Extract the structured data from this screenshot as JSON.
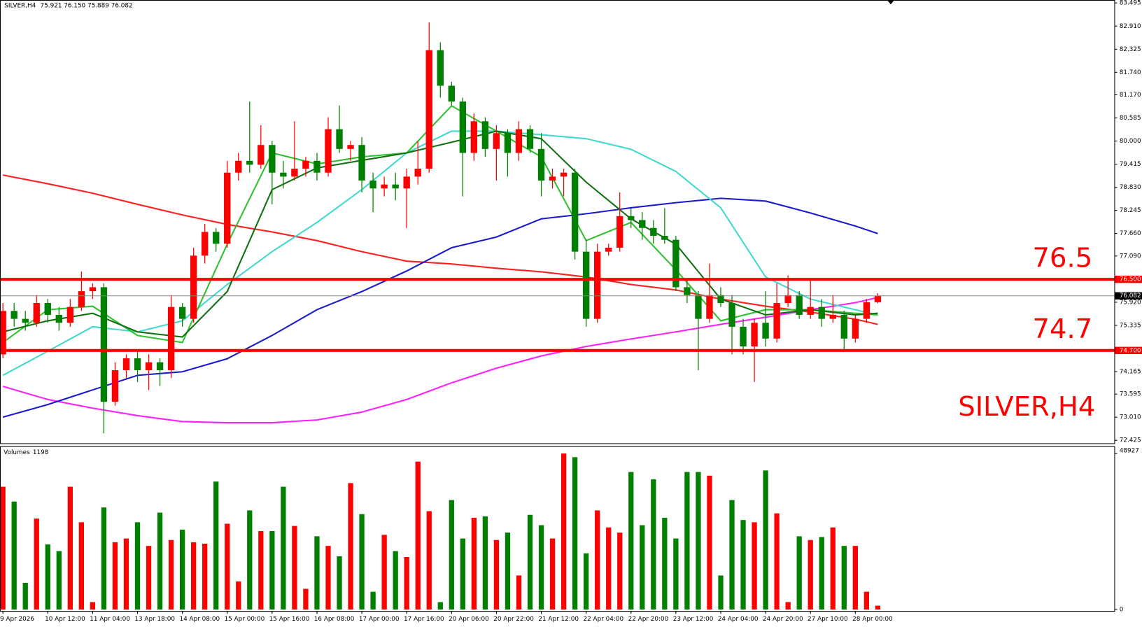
{
  "chart_data": {
    "type": "candlestick",
    "title": "SILVER,H4",
    "header_ohlc": "75.921 76.150 75.889 76.082",
    "up_color": "#ff0000",
    "down_color": "#008000",
    "ylim": [
      72.35,
      83.57
    ],
    "yticks": [
      {
        "value": 83.495,
        "label": "83.495"
      },
      {
        "value": 82.91,
        "label": "82.910"
      },
      {
        "value": 82.325,
        "label": "82.325"
      },
      {
        "value": 81.74,
        "label": "81.740"
      },
      {
        "value": 81.17,
        "label": "81.170"
      },
      {
        "value": 80.585,
        "label": "80.585"
      },
      {
        "value": 80.0,
        "label": "80.000"
      },
      {
        "value": 79.415,
        "label": "79.415"
      },
      {
        "value": 78.83,
        "label": "78.830"
      },
      {
        "value": 78.245,
        "label": "78.245"
      },
      {
        "value": 77.66,
        "label": "77.660"
      },
      {
        "value": 77.09,
        "label": "77.090"
      },
      {
        "value": 75.92,
        "label": "75.920"
      },
      {
        "value": 75.335,
        "label": "75.335"
      },
      {
        "value": 74.165,
        "label": "74.165"
      },
      {
        "value": 73.595,
        "label": "73.595"
      },
      {
        "value": 73.01,
        "label": "73.010"
      },
      {
        "value": 72.425,
        "label": "72.425"
      }
    ],
    "xticks": [
      {
        "value": 0,
        "label": "9 Apr 2026"
      },
      {
        "value": 4,
        "label": "10 Apr 12:00"
      },
      {
        "value": 8,
        "label": "11 Apr 04:00"
      },
      {
        "value": 12,
        "label": "13 Apr 18:00"
      },
      {
        "value": 16,
        "label": "14 Apr 08:00"
      },
      {
        "value": 20,
        "label": "15 Apr 00:00"
      },
      {
        "value": 24,
        "label": "15 Apr 16:00"
      },
      {
        "value": 28,
        "label": "16 Apr 08:00"
      },
      {
        "value": 32,
        "label": "17 Apr 00:00"
      },
      {
        "value": 36,
        "label": "17 Apr 16:00"
      },
      {
        "value": 40,
        "label": "20 Apr 06:00"
      },
      {
        "value": 44,
        "label": "20 Apr 22:00"
      },
      {
        "value": 48,
        "label": "21 Apr 12:00"
      },
      {
        "value": 52,
        "label": "22 Apr 04:00"
      },
      {
        "value": 56,
        "label": "22 Apr 20:00"
      },
      {
        "value": 60,
        "label": "23 Apr 12:00"
      },
      {
        "value": 64,
        "label": "24 Apr 04:00"
      },
      {
        "value": 68,
        "label": "24 Apr 20:00"
      },
      {
        "value": 72,
        "label": "27 Apr 10:00"
      },
      {
        "value": 76,
        "label": "28 Apr 00:00"
      }
    ],
    "candles": [
      [
        74.6,
        75.9,
        74.5,
        75.7
      ],
      [
        75.7,
        75.9,
        75.3,
        75.5
      ],
      [
        75.5,
        75.7,
        75.2,
        75.4
      ],
      [
        75.4,
        76.1,
        75.3,
        75.9
      ],
      [
        75.9,
        76.0,
        75.4,
        75.6
      ],
      [
        75.6,
        75.8,
        75.2,
        75.4
      ],
      [
        75.4,
        76.0,
        75.3,
        75.8
      ],
      [
        75.8,
        76.7,
        75.7,
        76.2
      ],
      [
        76.2,
        76.4,
        76.0,
        76.3
      ],
      [
        76.3,
        76.4,
        72.6,
        73.4
      ],
      [
        73.4,
        74.4,
        73.3,
        74.2
      ],
      [
        74.2,
        74.6,
        74.0,
        74.5
      ],
      [
        74.5,
        74.7,
        73.9,
        74.2
      ],
      [
        74.2,
        74.6,
        73.7,
        74.4
      ],
      [
        74.4,
        74.5,
        73.8,
        74.2
      ],
      [
        74.2,
        76.1,
        74.0,
        75.8
      ],
      [
        75.8,
        75.9,
        75.3,
        75.5
      ],
      [
        75.5,
        77.3,
        75.4,
        77.1
      ],
      [
        77.1,
        77.9,
        76.9,
        77.7
      ],
      [
        77.7,
        77.8,
        77.2,
        77.4
      ],
      [
        77.4,
        79.5,
        77.3,
        79.2
      ],
      [
        79.2,
        79.7,
        79.0,
        79.5
      ],
      [
        79.5,
        81.0,
        79.2,
        79.4
      ],
      [
        79.4,
        80.4,
        79.3,
        79.9
      ],
      [
        79.9,
        80.0,
        78.4,
        79.2
      ],
      [
        79.2,
        79.5,
        78.8,
        79.1
      ],
      [
        79.1,
        80.5,
        79.0,
        79.3
      ],
      [
        79.3,
        79.6,
        79.1,
        79.5
      ],
      [
        79.5,
        79.7,
        79.0,
        79.2
      ],
      [
        79.2,
        80.6,
        79.1,
        80.3
      ],
      [
        80.3,
        80.9,
        79.7,
        79.8
      ],
      [
        79.8,
        80.0,
        79.5,
        79.9
      ],
      [
        79.9,
        80.1,
        78.7,
        79.0
      ],
      [
        79.0,
        79.2,
        78.2,
        78.8
      ],
      [
        78.8,
        79.1,
        78.6,
        78.9
      ],
      [
        78.9,
        79.2,
        78.5,
        78.8
      ],
      [
        78.8,
        79.3,
        77.8,
        79.1
      ],
      [
        79.1,
        80.0,
        78.9,
        79.3
      ],
      [
        79.3,
        83.0,
        79.2,
        82.3
      ],
      [
        82.3,
        82.5,
        81.1,
        81.4
      ],
      [
        81.4,
        81.5,
        80.9,
        81.0
      ],
      [
        81.0,
        81.1,
        78.6,
        79.7
      ],
      [
        79.7,
        80.7,
        79.5,
        80.5
      ],
      [
        80.5,
        80.6,
        79.6,
        79.8
      ],
      [
        79.8,
        80.4,
        79.0,
        80.2
      ],
      [
        80.2,
        80.3,
        79.1,
        79.7
      ],
      [
        79.7,
        80.5,
        79.5,
        80.3
      ],
      [
        80.3,
        80.4,
        79.7,
        79.8
      ],
      [
        79.8,
        80.2,
        78.6,
        79.0
      ],
      [
        79.0,
        79.3,
        78.8,
        79.1
      ],
      [
        79.1,
        79.3,
        78.6,
        79.2
      ],
      [
        79.2,
        79.3,
        77.0,
        77.2
      ],
      [
        77.2,
        77.5,
        75.3,
        75.5
      ],
      [
        75.5,
        77.4,
        75.4,
        77.2
      ],
      [
        77.2,
        77.4,
        77.1,
        77.3
      ],
      [
        77.3,
        78.7,
        77.2,
        78.1
      ],
      [
        78.1,
        78.3,
        77.8,
        78.0
      ],
      [
        78.0,
        78.2,
        77.5,
        77.8
      ],
      [
        77.8,
        78.0,
        77.4,
        77.6
      ],
      [
        77.6,
        78.3,
        77.4,
        77.5
      ],
      [
        77.5,
        77.6,
        76.2,
        76.3
      ],
      [
        76.3,
        76.5,
        75.9,
        76.1
      ],
      [
        76.1,
        76.2,
        74.2,
        75.5
      ],
      [
        75.5,
        76.9,
        75.4,
        76.1
      ],
      [
        76.1,
        76.3,
        75.8,
        75.9
      ],
      [
        75.9,
        76.1,
        74.6,
        75.3
      ],
      [
        75.3,
        75.5,
        74.6,
        74.8
      ],
      [
        74.8,
        75.5,
        73.9,
        75.4
      ],
      [
        75.4,
        76.2,
        74.8,
        75.0
      ],
      [
        75.0,
        76.4,
        74.9,
        75.9
      ],
      [
        75.9,
        76.6,
        75.8,
        76.1
      ],
      [
        76.1,
        76.2,
        75.5,
        75.6
      ],
      [
        75.6,
        76.5,
        75.5,
        75.8
      ],
      [
        75.8,
        76.0,
        75.3,
        75.5
      ],
      [
        75.5,
        76.1,
        75.4,
        75.6
      ],
      [
        75.6,
        75.7,
        74.7,
        75.0
      ],
      [
        75.0,
        75.6,
        74.9,
        75.5
      ],
      [
        75.5,
        76.0,
        75.4,
        75.921
      ],
      [
        75.921,
        76.15,
        75.889,
        76.082
      ]
    ],
    "current_price": 76.082,
    "current_color": "#888888",
    "levels": [
      {
        "value": 76.5,
        "label": "76.500",
        "color": "#ff0000"
      },
      {
        "value": 74.7,
        "label": "74.700",
        "color": "#ff0000"
      }
    ],
    "indicator_x": [
      0,
      4,
      8,
      12,
      16,
      20,
      24,
      28,
      32,
      36,
      40,
      44,
      48,
      52,
      56,
      60,
      64,
      68,
      72,
      76,
      78
    ],
    "indicators": [
      {
        "color": "#ff2020",
        "values": [
          79.14,
          78.92,
          78.68,
          78.4,
          78.13,
          77.89,
          77.7,
          77.48,
          77.2,
          76.96,
          76.89,
          76.78,
          76.69,
          76.56,
          76.37,
          76.23,
          76.0,
          75.82,
          75.67,
          75.49,
          75.36
        ]
      },
      {
        "color": "#ff20ff",
        "values": [
          73.79,
          73.46,
          73.24,
          73.05,
          72.9,
          72.87,
          72.87,
          72.94,
          73.14,
          73.46,
          73.88,
          74.25,
          74.56,
          74.8,
          74.99,
          75.17,
          75.36,
          75.54,
          75.73,
          75.91,
          76.04
        ]
      },
      {
        "color": "#1a1acc",
        "values": [
          73.01,
          73.33,
          73.7,
          74.07,
          74.16,
          74.49,
          75.08,
          75.73,
          76.19,
          76.71,
          77.3,
          77.57,
          78.03,
          78.16,
          78.31,
          78.44,
          78.55,
          78.48,
          78.18,
          77.85,
          77.66
        ]
      },
      {
        "color": "#40d8d0",
        "values": [
          74.07,
          74.68,
          75.3,
          75.17,
          75.45,
          76.37,
          77.2,
          77.94,
          78.77,
          79.7,
          80.25,
          80.25,
          80.16,
          80.06,
          79.79,
          79.23,
          78.31,
          76.56,
          76.0,
          75.73,
          75.6
        ]
      },
      {
        "color": "#30c030",
        "values": [
          74.9,
          75.73,
          75.82,
          75.08,
          74.9,
          77.39,
          79.7,
          79.42,
          79.6,
          79.7,
          80.89,
          80.25,
          79.6,
          77.48,
          77.94,
          76.74,
          75.45,
          75.73,
          75.73,
          75.64,
          75.6
        ]
      },
      {
        "color": "#107010",
        "values": [
          75.17,
          75.45,
          75.64,
          75.17,
          75.04,
          76.19,
          78.77,
          79.32,
          79.51,
          79.7,
          79.97,
          80.25,
          80.06,
          78.96,
          78.03,
          77.39,
          76.0,
          75.6,
          75.73,
          75.6,
          75.64
        ]
      }
    ],
    "annotations": [
      {
        "text": "76.5",
        "value": 76.5
      },
      {
        "text": "74.7",
        "value": 74.7
      }
    ],
    "volume": {
      "title": "Volumes",
      "ylim": [
        0,
        48927
      ],
      "yticks": [
        48927,
        0
      ],
      "values": [
        38500,
        33860,
        8350,
        28520,
        20410,
        18320,
        38500,
        27360,
        2320,
        32000,
        21100,
        22260,
        27360,
        19940,
        30380,
        21800,
        25040,
        21100,
        20640,
        40120,
        26900,
        8810,
        31070,
        24580,
        24580,
        38500,
        26200,
        6490,
        22960,
        19940,
        16700,
        39650,
        29910,
        5570,
        23420,
        18320,
        16460,
        46380,
        30840,
        2320,
        34320,
        22260,
        28760,
        29220,
        21800,
        24120,
        10670,
        29680,
        26440,
        22260,
        48927,
        47770,
        17620,
        31070,
        25740,
        24120,
        43130,
        26440,
        40810,
        28760,
        22260,
        43130,
        43130,
        41970,
        10670,
        34320,
        28060,
        27360,
        43600,
        30150,
        2320,
        22960,
        21800,
        22730,
        25740,
        19940,
        19940,
        5570,
        1198
      ]
    }
  }
}
